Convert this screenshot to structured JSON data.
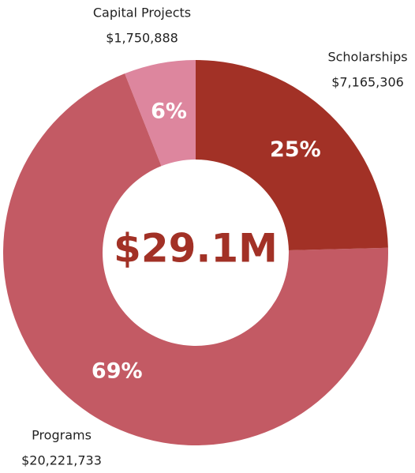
{
  "chart_data": {
    "type": "donut",
    "categories": [
      "Scholarships",
      "Programs",
      "Capital Projects"
    ],
    "values": [
      7165306,
      20221733,
      1750888
    ],
    "value_labels": [
      "$7,165,306",
      "$20,221,733",
      "$1,750,888"
    ],
    "percent_labels": [
      "25%",
      "69%",
      "6%"
    ],
    "colors": [
      "#a23126",
      "#c35a64",
      "#dd869e"
    ],
    "center_label": "$29.1M"
  }
}
